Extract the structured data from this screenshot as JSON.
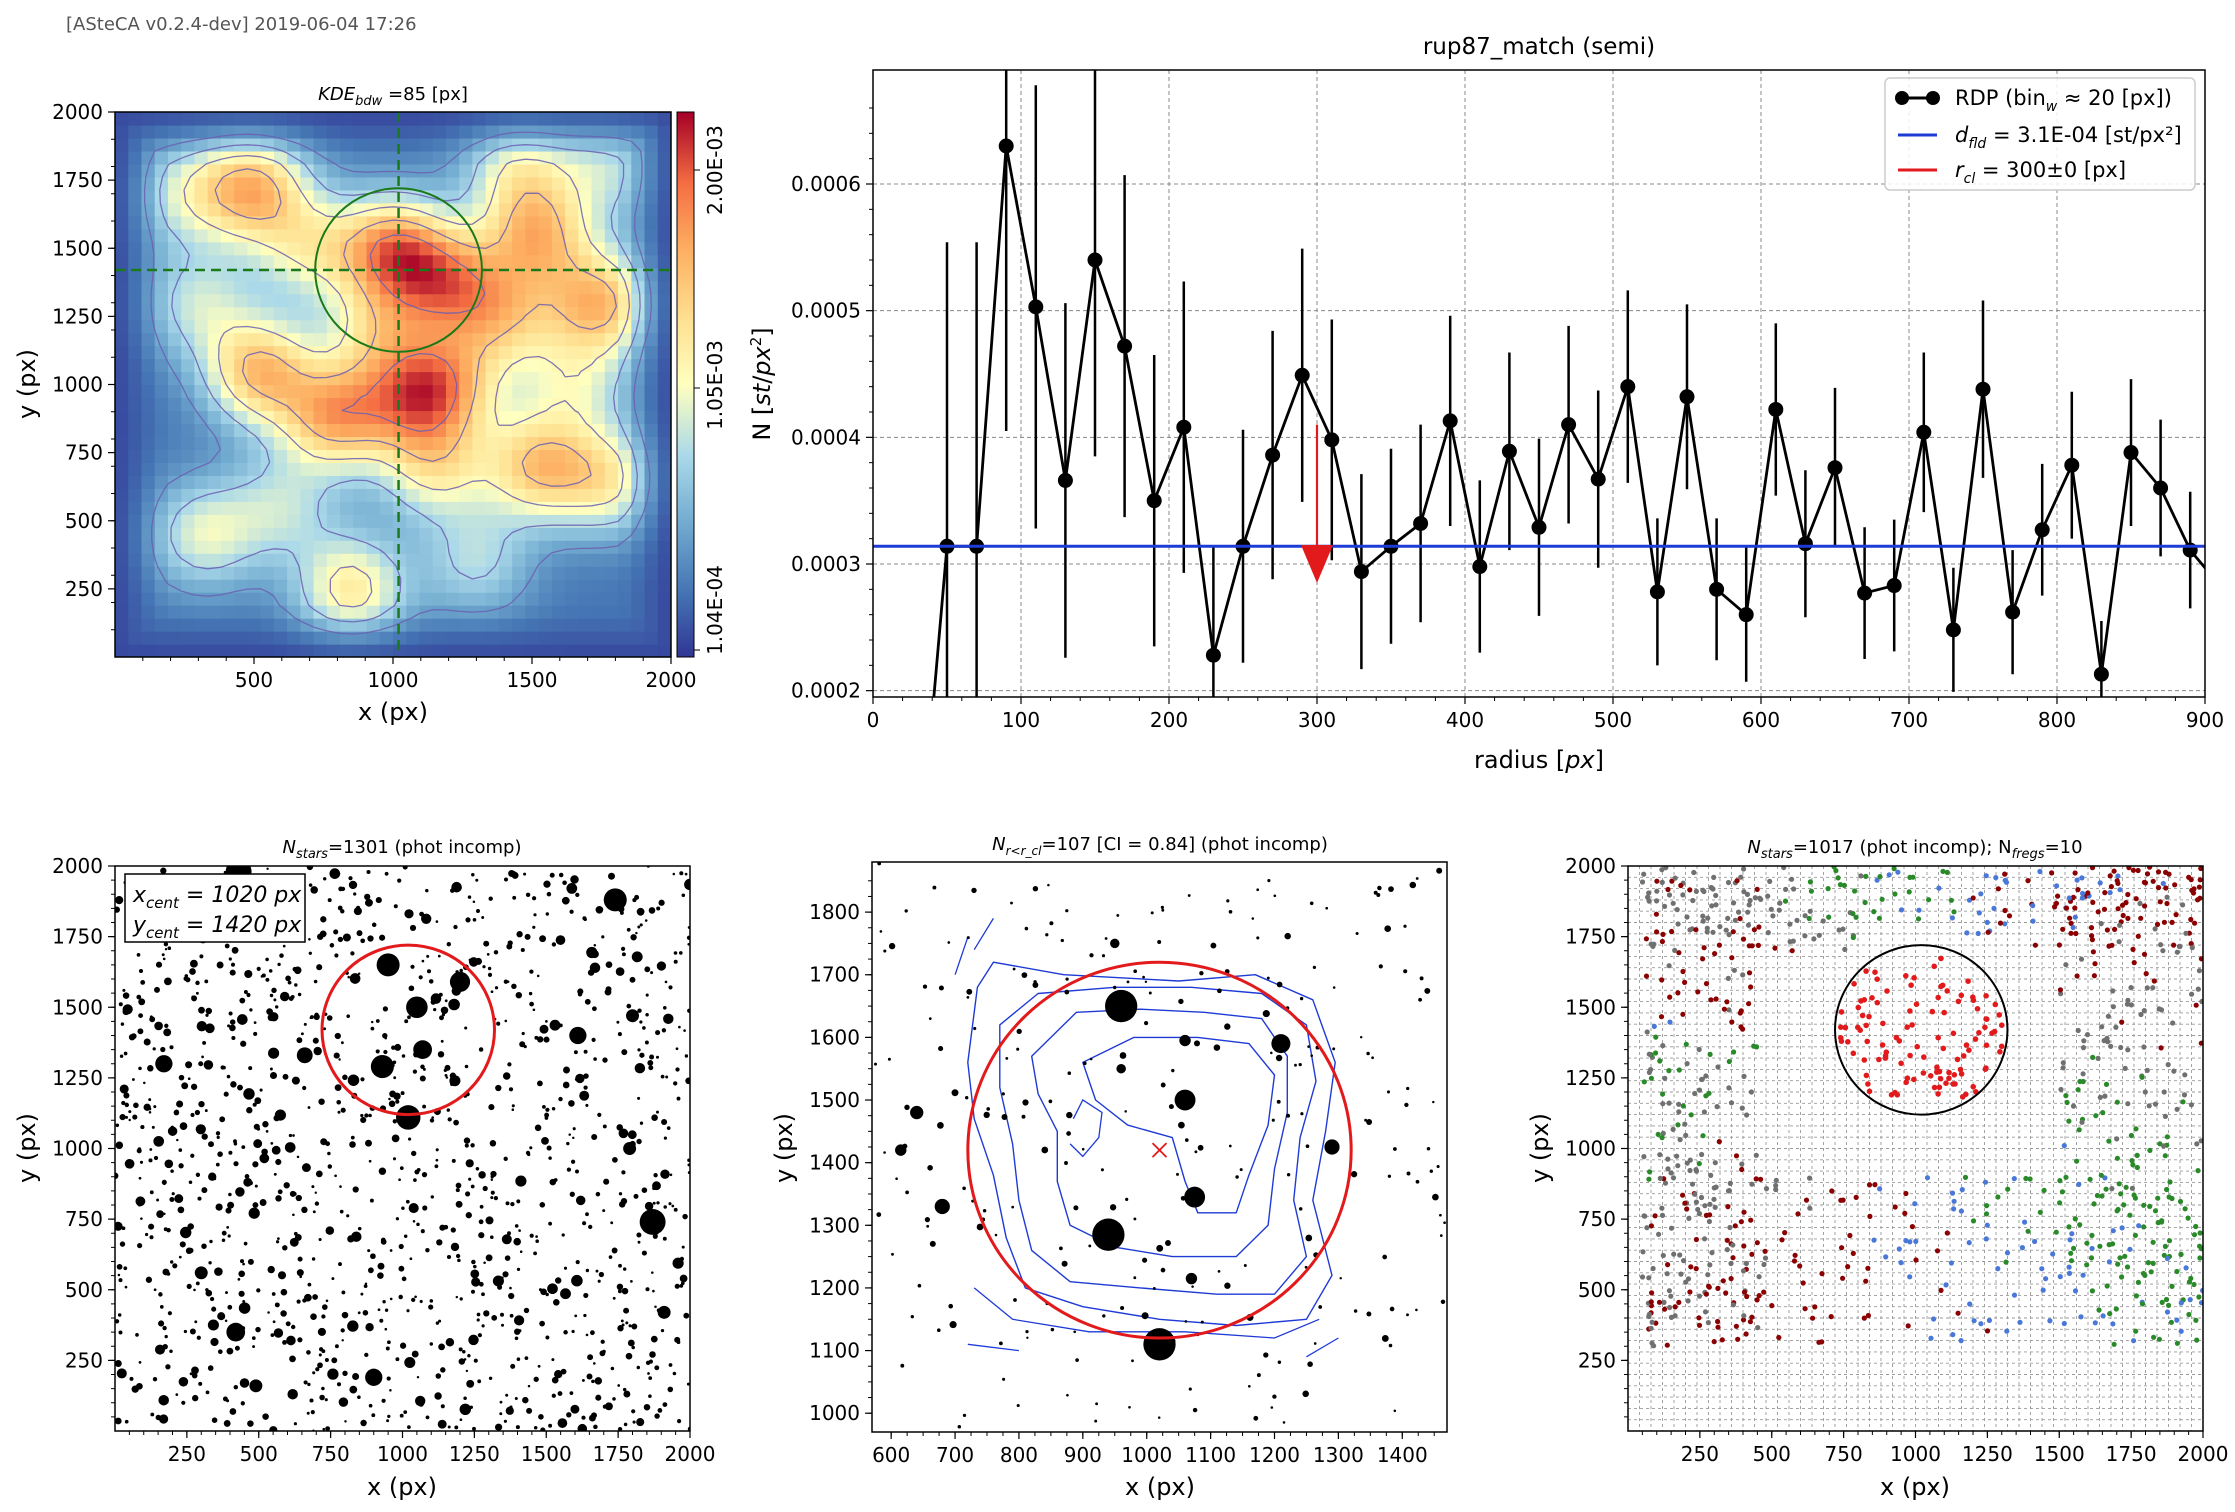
{
  "header": {
    "label": "[ASteCA v0.2.4-dev] 2019-06-04 17:26"
  },
  "colors": {
    "red": "#e31a1c",
    "blue": "#1f3bd6",
    "green": "#2a8a2a",
    "grey": "#707070",
    "darkred": "#8b0000",
    "lightblue": "#4a78d8",
    "black": "#000000"
  },
  "panels": {
    "kde": {
      "title_main": "KDE",
      "title_sub": "bdw",
      "title_rest": " =85 [px]",
      "xlabel": "x (px)",
      "ylabel": "y (px)",
      "xlim": [
        0,
        2000
      ],
      "ylim": [
        0,
        2000
      ],
      "xticks": [
        500,
        1000,
        1500,
        2000
      ],
      "yticks": [
        250,
        500,
        750,
        1000,
        1250,
        1500,
        1750,
        2000
      ],
      "colorbar_labels": [
        "2.00E-03",
        "1.05E-03",
        "1.04E-04"
      ],
      "center": [
        1020,
        1420
      ],
      "radius": 300,
      "hotspots": [
        [
          500,
          1720,
          1.0
        ],
        [
          1000,
          1500,
          1.1
        ],
        [
          1200,
          1380,
          0.9
        ],
        [
          1520,
          1550,
          0.9
        ],
        [
          1750,
          1300,
          1.0
        ],
        [
          520,
          1050,
          1.0
        ],
        [
          790,
          880,
          1.0
        ],
        [
          1200,
          1000,
          0.8
        ],
        [
          1520,
          700,
          0.9
        ],
        [
          850,
          250,
          0.8
        ],
        [
          1780,
          650,
          0.7
        ],
        [
          320,
          450,
          0.6
        ],
        [
          1150,
          700,
          0.7
        ],
        [
          1450,
          1800,
          0.6
        ],
        [
          300,
          1300,
          0.5
        ],
        [
          950,
          1200,
          0.6
        ],
        [
          700,
          1500,
          0.6
        ],
        [
          1650,
          1000,
          0.5
        ],
        [
          1300,
          350,
          0.45
        ],
        [
          600,
          550,
          0.45
        ],
        [
          250,
          1700,
          0.5
        ],
        [
          1780,
          1800,
          0.45
        ],
        [
          1050,
          950,
          0.7
        ],
        [
          1400,
          1250,
          0.7
        ]
      ]
    },
    "rdp": {
      "title": "rup87_match (semi)",
      "xlabel": "radius [px]",
      "ylabel": "N [st/px²]",
      "xlim": [
        0,
        900
      ],
      "ylim": [
        0.000195,
        0.00069
      ],
      "xticks": [
        0,
        100,
        200,
        300,
        400,
        500,
        600,
        700,
        800,
        900
      ],
      "yticks": [
        0.0002,
        0.0003,
        0.0004,
        0.0005,
        0.0006
      ],
      "ytick_labels": [
        "0.0002",
        "0.0003",
        "0.0004",
        "0.0005",
        "0.0006"
      ],
      "field_density": 0.000314,
      "r_cl": 300,
      "legend": {
        "rdp": "RDP (bin",
        "rdp_sub": "w",
        "rdp_rest": " ≈ 20 [px])",
        "fld": "d",
        "fld_sub": "fld",
        "fld_rest": " =  3.1E-04 [st/px²]",
        "rcl": "r",
        "rcl_sub": "cl",
        "rcl_rest": " = 300±0 [px]"
      }
    },
    "full_field": {
      "title_main": "N",
      "title_sub": "stars",
      "title_rest": "=1301 (phot incomp)",
      "xlabel": "x (px)",
      "ylabel": "y (px)",
      "xlim": [
        0,
        2000
      ],
      "ylim": [
        0,
        2000
      ],
      "xticks": [
        250,
        500,
        750,
        1000,
        1250,
        1500,
        1750,
        2000
      ],
      "yticks": [
        250,
        500,
        750,
        1000,
        1250,
        1500,
        1750,
        2000
      ],
      "xcent_label": "x",
      "xcent_sub": "cent",
      "xcent_value": " = 1020 px",
      "ycent_label": "y",
      "ycent_sub": "cent",
      "ycent_value": " = 1420 px",
      "center": [
        1020,
        1420
      ],
      "radius": 300,
      "big_stars": [
        [
          430,
          1980,
          18
        ],
        [
          1740,
          1880,
          16
        ],
        [
          950,
          1650,
          16
        ],
        [
          1200,
          1590,
          14
        ],
        [
          1050,
          1500,
          15
        ],
        [
          930,
          1290,
          16
        ],
        [
          1020,
          1110,
          17
        ],
        [
          1070,
          1350,
          13
        ],
        [
          170,
          1300,
          12
        ],
        [
          660,
          1330,
          11
        ],
        [
          1610,
          1400,
          12
        ],
        [
          1870,
          740,
          18
        ],
        [
          420,
          350,
          13
        ],
        [
          900,
          190,
          12
        ],
        [
          300,
          560,
          9
        ],
        [
          490,
          160,
          9
        ],
        [
          1790,
          1000,
          9
        ],
        [
          1910,
          420,
          9
        ],
        [
          1800,
          1470,
          9
        ]
      ]
    },
    "zoom": {
      "title_main": "N",
      "title_sub": "r<r_cl",
      "title_rest": "=107 [CI = 0.84] (phot incomp)",
      "xlabel": "x (px)",
      "ylabel": "y (px)",
      "xlim": [
        570,
        1470
      ],
      "ylim": [
        970,
        1880
      ],
      "xticks": [
        600,
        700,
        800,
        900,
        1000,
        1100,
        1200,
        1300,
        1400
      ],
      "yticks": [
        1000,
        1100,
        1200,
        1300,
        1400,
        1500,
        1600,
        1700,
        1800
      ],
      "center": [
        1020,
        1420
      ],
      "radius": 300,
      "big_stars": [
        [
          960,
          1650,
          17
        ],
        [
          940,
          1285,
          17
        ],
        [
          1020,
          1110,
          17
        ],
        [
          1060,
          1500,
          11
        ],
        [
          1075,
          1345,
          11
        ],
        [
          1210,
          1590,
          10
        ],
        [
          1290,
          1425,
          8
        ],
        [
          680,
          1330,
          8
        ],
        [
          640,
          1480,
          7
        ],
        [
          615,
          1420,
          6
        ],
        [
          1060,
          1595,
          6
        ],
        [
          1070,
          1215,
          6
        ],
        [
          950,
          1750,
          5
        ],
        [
          960,
          1550,
          5
        ]
      ]
    },
    "fregions": {
      "title_main": "N",
      "title_sub": "stars",
      "title_rest": "=1017 (phot incomp); N",
      "title_sub2": "fregs",
      "title_rest2": "=10",
      "xlabel": "x (px)",
      "ylabel": "y (px)",
      "xlim": [
        0,
        2000
      ],
      "ylim": [
        0,
        2000
      ],
      "xticks": [
        250,
        500,
        750,
        1000,
        1250,
        1500,
        1750,
        2000
      ],
      "yticks": [
        250,
        500,
        750,
        1000,
        1250,
        1500,
        1750,
        2000
      ],
      "center": [
        1020,
        1420
      ],
      "radius": 300
    }
  },
  "chart_data": [
    {
      "type": "heatmap",
      "title": "KDE_bdw =85 [px]",
      "xlabel": "x (px)",
      "ylabel": "y (px)",
      "xlim": [
        0,
        2000
      ],
      "ylim": [
        0,
        2000
      ],
      "colorbar_ticks": [
        "2.00E-03",
        "1.05E-03",
        "1.04E-04"
      ],
      "colormap": "RdYlBu_r",
      "grid": false
    },
    {
      "type": "line",
      "title": "rup87_match (semi)",
      "xlabel": "radius [px]",
      "ylabel": "N [st/px²]",
      "xlim": [
        0,
        900
      ],
      "ylim": [
        0.000195,
        0.00069
      ],
      "legend_position": "top-right",
      "grid": true,
      "series": [
        {
          "name": "RDP (bin_w ≈ 20 [px])",
          "x": [
            50,
            70,
            90,
            110,
            130,
            150,
            170,
            190,
            210,
            230,
            250,
            270,
            290,
            310,
            330,
            350,
            370,
            390,
            410,
            430,
            450,
            470,
            490,
            510,
            530,
            550,
            570,
            590,
            610,
            630,
            650,
            670,
            690,
            710,
            730,
            750,
            770,
            790,
            810,
            830,
            850,
            870,
            890
          ],
          "y": [
            0.000314,
            0.000314,
            0.00063,
            0.000503,
            0.000366,
            0.00054,
            0.000472,
            0.00035,
            0.000408,
            0.000228,
            0.000314,
            0.000386,
            0.000449,
            0.000398,
            0.000294,
            0.000314,
            0.000332,
            0.000413,
            0.000298,
            0.000389,
            0.000329,
            0.00041,
            0.000367,
            0.00044,
            0.000278,
            0.000432,
            0.00028,
            0.00026,
            0.000422,
            0.000316,
            0.000376,
            0.000277,
            0.000283,
            0.000404,
            0.000248,
            0.000438,
            0.000262,
            0.000327,
            0.000378,
            0.000213,
            0.000388,
            0.00036,
            0.000311
          ],
          "yerr": [
            0.00024,
            0.00024,
            0.000225,
            0.000175,
            0.00014,
            0.000155,
            0.000135,
            0.000115,
            0.000115,
            8.5e-05,
            9.2e-05,
            9.8e-05,
            0.0001,
            9.5e-05,
            7.7e-05,
            7.7e-05,
            7.8e-05,
            8.3e-05,
            6.8e-05,
            7.8e-05,
            7e-05,
            7.8e-05,
            7e-05,
            7.6e-05,
            5.8e-05,
            7.3e-05,
            5.6e-05,
            5.3e-05,
            6.8e-05,
            5.8e-05,
            6.3e-05,
            5.2e-05,
            5.2e-05,
            6.3e-05,
            4.9e-05,
            7e-05,
            4.9e-05,
            5.2e-05,
            5.8e-05,
            4.2e-05,
            5.8e-05,
            5.4e-05,
            4.6e-05
          ]
        },
        {
          "name": "d_fld = 3.1E-04 [st/px²]",
          "y_constant": 0.000314
        },
        {
          "name": "r_cl = 300±0 [px]",
          "x_marker": 300
        }
      ]
    },
    {
      "type": "scatter",
      "title": "N_stars=1301 (phot incomp)",
      "xlabel": "x (px)",
      "ylabel": "y (px)",
      "xlim": [
        0,
        2000
      ],
      "ylim": [
        0,
        2000
      ],
      "annotations": [
        "x_cent = 1020 px",
        "y_cent = 1420 px"
      ],
      "circle": {
        "center": [
          1020,
          1420
        ],
        "radius": 300
      }
    },
    {
      "type": "scatter",
      "title": "N_r<r_cl=107 [CI = 0.84] (phot incomp)",
      "xlabel": "x (px)",
      "ylabel": "y (px)",
      "xlim": [
        570,
        1470
      ],
      "ylim": [
        970,
        1880
      ],
      "circle": {
        "center": [
          1020,
          1420
        ],
        "radius": 300
      }
    },
    {
      "type": "scatter",
      "title": "N_stars=1017 (phot incomp); N_fregs=10",
      "xlabel": "x (px)",
      "ylabel": "y (px)",
      "xlim": [
        0,
        2000
      ],
      "ylim": [
        0,
        2000
      ],
      "circle": {
        "center": [
          1020,
          1420
        ],
        "radius": 300
      },
      "grid": true
    }
  ]
}
